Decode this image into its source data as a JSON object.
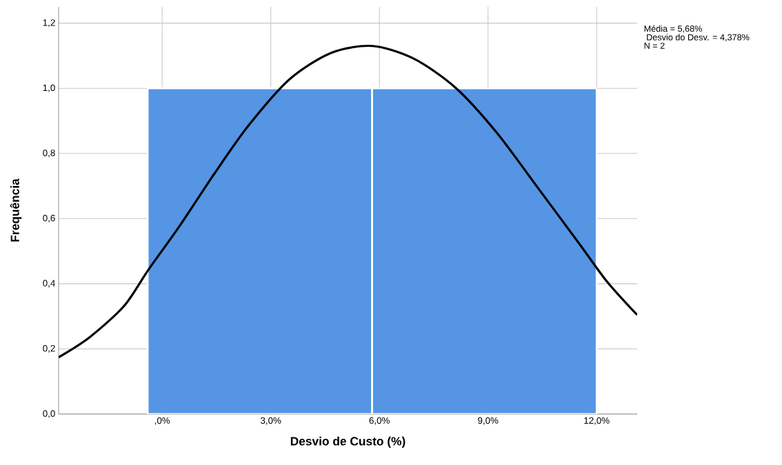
{
  "chart_data": {
    "type": "histogram",
    "xlabel": "Desvio de Custo (%)",
    "ylabel": "Frequência",
    "annotations": [
      "Média = 5,68%",
      " Desvio do Desv. = 4,378%",
      "N = 2"
    ],
    "series": [
      {
        "type": "histogram",
        "color": "#5595e4",
        "bins": [
          -0.4,
          5.8,
          12.0
        ],
        "values": [
          1,
          1
        ]
      },
      {
        "type": "line",
        "color": "#000000",
        "x": [
          -2.86,
          -2.0,
          -1.05,
          -0.38,
          0.48,
          1.43,
          2.38,
          3.52,
          4.67,
          5.81,
          6.95,
          8.1,
          9.24,
          10.38,
          11.52,
          12.29,
          13.12
        ],
        "values": [
          0.174,
          0.236,
          0.332,
          0.443,
          0.577,
          0.736,
          0.885,
          1.028,
          1.109,
          1.13,
          1.091,
          1.002,
          0.864,
          0.694,
          0.523,
          0.406,
          0.304
        ]
      }
    ],
    "xlim": [
      -2.86,
      13.12
    ],
    "ylim": [
      0,
      1.25
    ],
    "xticks": [
      {
        "value": 0,
        "label": ",0%"
      },
      {
        "value": 3,
        "label": "3,0%"
      },
      {
        "value": 6,
        "label": "6,0%"
      },
      {
        "value": 9,
        "label": "9,0%"
      },
      {
        "value": 12,
        "label": "12,0%"
      }
    ],
    "yticks": [
      {
        "value": 0,
        "label": "0,0"
      },
      {
        "value": 0.2,
        "label": "0,2"
      },
      {
        "value": 0.4,
        "label": "0,4"
      },
      {
        "value": 0.6,
        "label": "0,6"
      },
      {
        "value": 0.8,
        "label": "0,8"
      },
      {
        "value": 1.0,
        "label": "1,0"
      },
      {
        "value": 1.2,
        "label": "1,2"
      }
    ],
    "grid": true
  }
}
